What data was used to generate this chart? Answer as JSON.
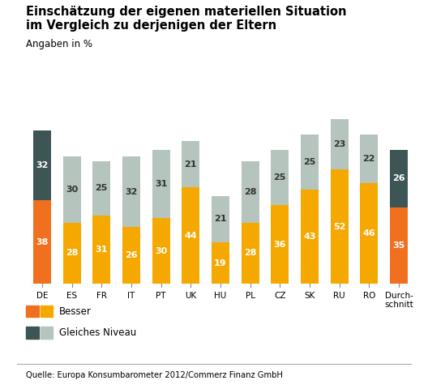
{
  "categories": [
    "DE",
    "ES",
    "FR",
    "IT",
    "PT",
    "UK",
    "HU",
    "PL",
    "CZ",
    "SK",
    "RU",
    "RO",
    "Durch-\nschnitt"
  ],
  "besser": [
    38,
    28,
    31,
    26,
    30,
    44,
    19,
    28,
    36,
    43,
    52,
    46,
    35
  ],
  "gleich": [
    32,
    30,
    25,
    32,
    31,
    21,
    21,
    28,
    25,
    25,
    23,
    22,
    26
  ],
  "besser_colors": [
    "#f07020",
    "#f5a800",
    "#f5a800",
    "#f5a800",
    "#f5a800",
    "#f5a800",
    "#f5a800",
    "#f5a800",
    "#f5a800",
    "#f5a800",
    "#f5a800",
    "#f5a800",
    "#f07020"
  ],
  "gleich_color_normal": "#b5c4bc",
  "gleich_color_dark": "#3d5555",
  "dark_bars": [
    0,
    12
  ],
  "title_line1": "Einschätzung der eigenen materiellen Situation",
  "title_line2": "im Vergleich zu derjenigen der Eltern",
  "subtitle": "Angaben in %",
  "legend_besser": "Besser",
  "legend_gleich": "Gleiches Niveau",
  "source": "Quelle: Europa Konsumbarometer 2012/Commerz Finanz GmbH",
  "legend_orange": "#f07020",
  "legend_yellow": "#f5a800",
  "legend_gray_light": "#b5c4bc",
  "legend_gray_dark": "#3d5555",
  "bg_color": "#ffffff",
  "ylim": 85,
  "bar_width": 0.6
}
